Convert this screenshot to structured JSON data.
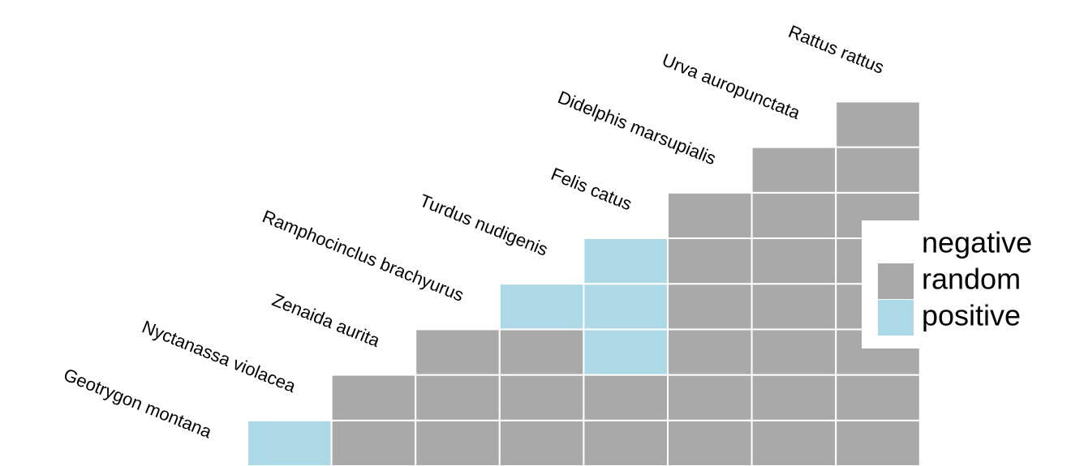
{
  "chart_data": {
    "type": "heatmap",
    "species": [
      "Geotrygon montana",
      "Nyctanassa violacea",
      "Zenaida aurita",
      "Ramphocinclus brachyurus",
      "Turdus nudigenis",
      "Felis catus",
      "Didelphis marsupialis",
      "Urva auropunctata",
      "Rattus rattus"
    ],
    "matrix": [
      [
        "positive",
        "random",
        "random",
        "random",
        "random",
        "random",
        "random",
        "random"
      ],
      [
        null,
        "random",
        "random",
        "random",
        "random",
        "random",
        "random",
        "random"
      ],
      [
        null,
        null,
        "random",
        "random",
        "positive",
        "random",
        "random",
        "random"
      ],
      [
        null,
        null,
        null,
        "positive",
        "positive",
        "random",
        "random",
        "random"
      ],
      [
        null,
        null,
        null,
        null,
        "positive",
        "random",
        "random",
        "random"
      ],
      [
        null,
        null,
        null,
        null,
        null,
        "random",
        "random",
        "random"
      ],
      [
        null,
        null,
        null,
        null,
        null,
        null,
        "random",
        "random"
      ],
      [
        null,
        null,
        null,
        null,
        null,
        null,
        null,
        "random"
      ]
    ],
    "legend": {
      "series": [
        {
          "name": "negative",
          "color": "#ffffff"
        },
        {
          "name": "random",
          "color": "#a9a9a9"
        },
        {
          "name": "positive",
          "color": "#add8e6"
        }
      ]
    }
  }
}
